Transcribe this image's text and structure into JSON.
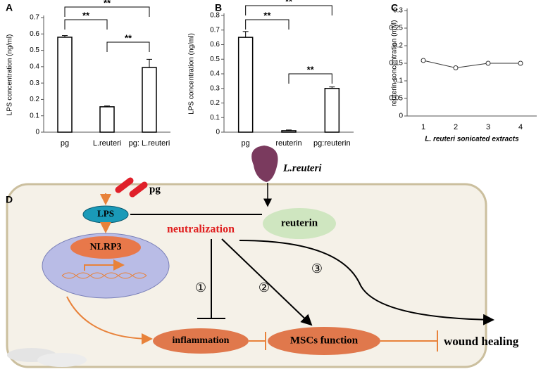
{
  "chart_data": [
    {
      "type": "bar",
      "panel": "A",
      "y_label": "LPS concentration (ng/ml)",
      "categories": [
        "pg",
        "L.reuteri",
        "pg: L.reuteri"
      ],
      "values": [
        0.58,
        0.155,
        0.395
      ],
      "errors": [
        0.01,
        0.005,
        0.05
      ],
      "color": "#ffffff",
      "ylim": [
        0,
        0.7
      ],
      "yticks": [
        0,
        0.1,
        0.2,
        0.3,
        0.4,
        0.5,
        0.6,
        0.7
      ],
      "annotations": [
        "**",
        "**",
        "**"
      ]
    },
    {
      "type": "bar",
      "panel": "B",
      "y_label": "LPS concentration (ng/ml)",
      "categories": [
        "pg",
        "reuterin",
        "pg:reuterin"
      ],
      "values": [
        0.65,
        0.01,
        0.3
      ],
      "errors": [
        0.04,
        0.005,
        0.01
      ],
      "color": "#ffffff",
      "ylim": [
        0,
        0.8
      ],
      "yticks": [
        0,
        0.1,
        0.2,
        0.3,
        0.4,
        0.5,
        0.6,
        0.7,
        0.8
      ],
      "annotations": [
        "**",
        "**",
        "**"
      ]
    },
    {
      "type": "line",
      "panel": "C",
      "y_label": "reuterin concentration (mM)",
      "x_label": "L. reuteri sonicated extracts",
      "categories": [
        "1",
        "2",
        "3",
        "4"
      ],
      "values": [
        0.158,
        0.137,
        0.15,
        0.15
      ],
      "color": "#333333",
      "ylim": [
        0,
        0.3
      ],
      "yticks": [
        0,
        0.05,
        0.1,
        0.15,
        0.2,
        0.25,
        0.3
      ]
    }
  ],
  "diagram": {
    "panel": "D",
    "nodes": [
      "pg",
      "L.reuteri",
      "LPS",
      "reuterin",
      "neutralization",
      "NLRP3",
      "inflammation",
      "MSCs function",
      "wound healing"
    ],
    "steps": [
      "①",
      "②",
      "③"
    ]
  }
}
